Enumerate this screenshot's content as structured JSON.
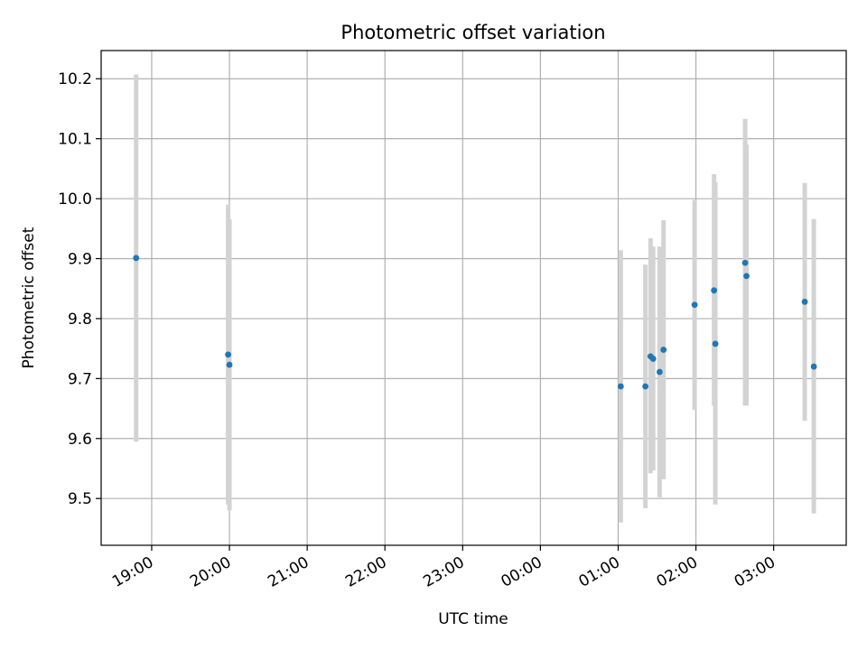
{
  "chart_data": {
    "type": "scatter",
    "title": "Photometric offset variation",
    "xlabel": "UTC time",
    "ylabel": "Photometric offset",
    "grid": true,
    "xlim": [
      "18:21",
      "03:56"
    ],
    "ylim": [
      9.422,
      10.247
    ],
    "x_ticks": [
      "19:00",
      "20:00",
      "21:00",
      "22:00",
      "23:00",
      "00:00",
      "01:00",
      "02:00",
      "03:00"
    ],
    "y_ticks": [
      "9.5",
      "9.6",
      "9.7",
      "9.8",
      "9.9",
      "10.0",
      "10.1",
      "10.2"
    ],
    "colors": {
      "point": "#1f77b4",
      "errorbar": "#d3d3d3",
      "grid": "#b0b0b0"
    },
    "series": [
      {
        "points": [
          {
            "x": "18:48",
            "y": 9.901,
            "ylow": 9.595,
            "yhigh": 10.207
          },
          {
            "x": "19:59",
            "y": 9.74,
            "ylow": 9.49,
            "yhigh": 9.99
          },
          {
            "x": "20:00",
            "y": 9.723,
            "ylow": 9.48,
            "yhigh": 9.966
          },
          {
            "x": "01:02",
            "y": 9.687,
            "ylow": 9.46,
            "yhigh": 9.914
          },
          {
            "x": "01:21",
            "y": 9.687,
            "ylow": 9.484,
            "yhigh": 9.89
          },
          {
            "x": "01:25",
            "y": 9.737,
            "ylow": 9.542,
            "yhigh": 9.934
          },
          {
            "x": "01:27",
            "y": 9.733,
            "ylow": 9.547,
            "yhigh": 9.92
          },
          {
            "x": "01:32",
            "y": 9.711,
            "ylow": 9.502,
            "yhigh": 9.92
          },
          {
            "x": "01:35",
            "y": 9.748,
            "ylow": 9.532,
            "yhigh": 9.964
          },
          {
            "x": "01:59",
            "y": 9.823,
            "ylow": 9.648,
            "yhigh": 9.998
          },
          {
            "x": "02:14",
            "y": 9.847,
            "ylow": 9.655,
            "yhigh": 10.041
          },
          {
            "x": "02:15",
            "y": 9.758,
            "ylow": 9.49,
            "yhigh": 10.027
          },
          {
            "x": "02:38",
            "y": 9.893,
            "ylow": 9.655,
            "yhigh": 10.133
          },
          {
            "x": "02:39",
            "y": 9.871,
            "ylow": 9.655,
            "yhigh": 10.09
          },
          {
            "x": "03:24",
            "y": 9.828,
            "ylow": 9.63,
            "yhigh": 10.026
          },
          {
            "x": "03:31",
            "y": 9.72,
            "ylow": 9.475,
            "yhigh": 9.966
          }
        ]
      }
    ]
  }
}
